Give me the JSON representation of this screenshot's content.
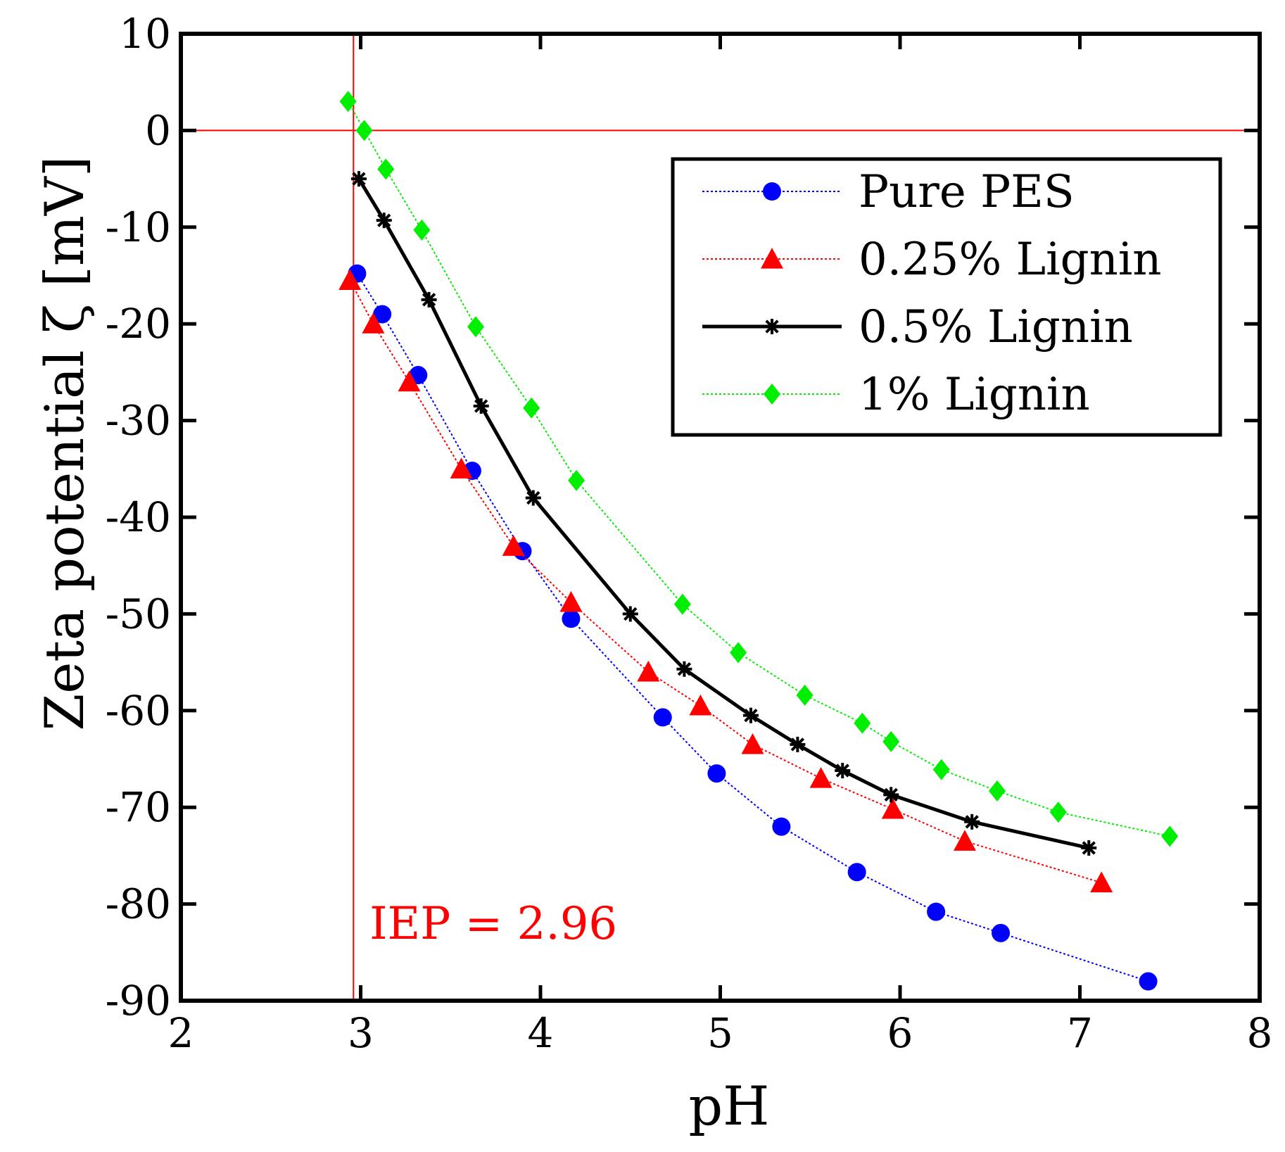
{
  "chart_data": {
    "type": "line",
    "title": "",
    "xlabel": "pH",
    "ylabel": "Zeta potential ζ [mV]",
    "xlim": [
      2,
      8
    ],
    "ylim": [
      -90,
      10
    ],
    "xticks": [
      2,
      3,
      4,
      5,
      6,
      7,
      8
    ],
    "yticks": [
      10,
      0,
      -10,
      -20,
      -30,
      -40,
      -50,
      -60,
      -70,
      -80,
      -90
    ],
    "grid": false,
    "legend_position": "top-right",
    "reference_lines": {
      "vertical_x": 2.96,
      "horizontal_y": 0,
      "color": "#ff0000"
    },
    "annotation": {
      "text": "IEP = 2.96",
      "x": 3.05,
      "y": -82,
      "color": "#ff0000"
    },
    "series": [
      {
        "name": "Pure PES",
        "color": "#0000ff",
        "marker": "circle",
        "line_style": "dotted",
        "x": [
          2.98,
          3.12,
          3.32,
          3.62,
          3.9,
          4.17,
          4.68,
          4.98,
          5.34,
          5.76,
          6.2,
          6.56,
          7.38
        ],
        "y": [
          -14.8,
          -19.0,
          -25.3,
          -35.2,
          -43.5,
          -50.5,
          -60.7,
          -66.5,
          -72.0,
          -76.7,
          -80.8,
          -83.0,
          -88.0
        ]
      },
      {
        "name": "0.25% Lignin",
        "color": "#ff0000",
        "marker": "triangle",
        "line_style": "dotted",
        "x": [
          2.94,
          3.07,
          3.27,
          3.56,
          3.85,
          4.17,
          4.6,
          4.89,
          5.18,
          5.56,
          5.96,
          6.36,
          7.12
        ],
        "y": [
          -15.5,
          -20.0,
          -26.0,
          -35.0,
          -43.0,
          -48.8,
          -56.0,
          -59.5,
          -63.5,
          -67.0,
          -70.2,
          -73.5,
          -77.8
        ]
      },
      {
        "name": "0.5% Lignin",
        "color": "#000000",
        "marker": "star",
        "line_style": "solid",
        "x": [
          2.99,
          3.13,
          3.38,
          3.67,
          3.96,
          4.5,
          4.8,
          5.17,
          5.43,
          5.68,
          5.95,
          6.4,
          7.05
        ],
        "y": [
          -5.0,
          -9.3,
          -17.5,
          -28.5,
          -38.0,
          -50.0,
          -55.7,
          -60.5,
          -63.5,
          -66.2,
          -68.7,
          -71.5,
          -74.2
        ]
      },
      {
        "name": "1% Lignin",
        "color": "#00ee00",
        "marker": "diamond",
        "line_style": "dotted",
        "x": [
          2.93,
          3.02,
          3.14,
          3.34,
          3.64,
          3.95,
          4.2,
          4.79,
          5.1,
          5.47,
          5.79,
          5.95,
          6.23,
          6.54,
          6.88,
          7.5
        ],
        "y": [
          3.0,
          0.0,
          -4.0,
          -10.3,
          -20.3,
          -28.7,
          -36.2,
          -49.0,
          -54.0,
          -58.4,
          -61.3,
          -63.2,
          -66.1,
          -68.3,
          -70.5,
          -73.0
        ]
      }
    ]
  }
}
